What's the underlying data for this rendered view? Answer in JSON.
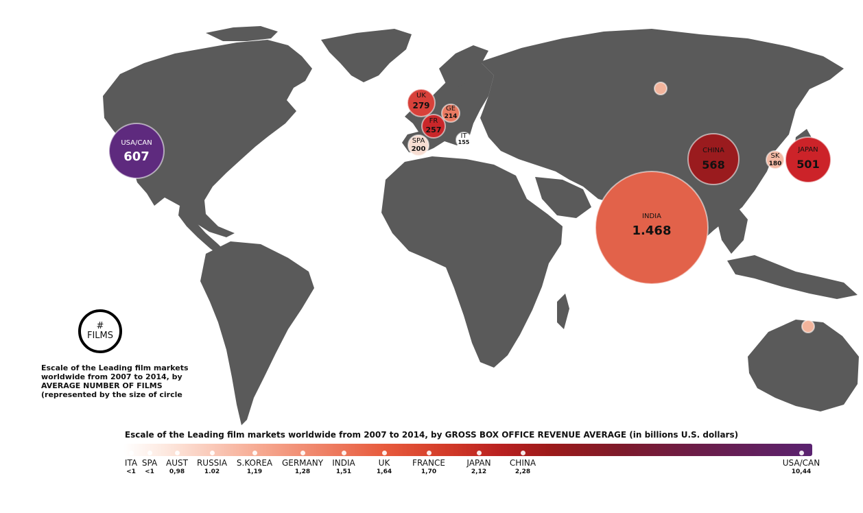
{
  "map": {
    "bubbles": [
      {
        "name": "USA/CAN",
        "value": "607",
        "color": "#5e2a7e"
      },
      {
        "name": "UK",
        "value": "279",
        "color": "#d8413a"
      },
      {
        "name": "GE",
        "value": "214",
        "color": "#e97a62"
      },
      {
        "name": "FR",
        "value": "257",
        "color": "#c9272a"
      },
      {
        "name": "SPA",
        "value": "200",
        "color": "#f7ddd2"
      },
      {
        "name": "IT",
        "value": "155",
        "color": "#ffffff"
      },
      {
        "name": "CHINA",
        "value": "568",
        "color": "#9a1b1e"
      },
      {
        "name": "SK",
        "value": "180",
        "color": "#f3b9a4"
      },
      {
        "name": "JAPAN",
        "value": "501",
        "color": "#cc2329"
      },
      {
        "name": "INDIA",
        "value": "1.468",
        "color": "#e2624a"
      },
      {
        "name": "",
        "value": "",
        "color": "#f2b49c"
      },
      {
        "name": "",
        "value": "",
        "color": "#f2b49c"
      }
    ]
  },
  "legend": {
    "symbol_top": "#",
    "symbol_bottom": "FILMS",
    "lines": [
      "Escale of the Leading film markets",
      "worldwide from 2007 to 2014, by",
      "AVERAGE NUMBER OF FILMS",
      "(represented by the size of circle"
    ]
  },
  "scale": {
    "title": "Escale of the Leading film markets worldwide from 2007 to 2014, by GROSS BOX OFFICE REVENUE AVERAGE (in billions U.S. dollars)",
    "ticks": [
      {
        "name": "ITA",
        "value": "<1"
      },
      {
        "name": "SPA",
        "value": "<1"
      },
      {
        "name": "AUST",
        "value": "0,98"
      },
      {
        "name": "RUSSIA",
        "value": "1.02"
      },
      {
        "name": "S.KOREA",
        "value": "1,19"
      },
      {
        "name": "GERMANY",
        "value": "1,28"
      },
      {
        "name": "INDIA",
        "value": "1,51"
      },
      {
        "name": "UK",
        "value": "1,64"
      },
      {
        "name": "FRANCE",
        "value": "1,70"
      },
      {
        "name": "JAPAN",
        "value": "2,12"
      },
      {
        "name": "CHINA",
        "value": "2,28"
      },
      {
        "name": "USA/CAN",
        "value": "10,44"
      }
    ]
  }
}
